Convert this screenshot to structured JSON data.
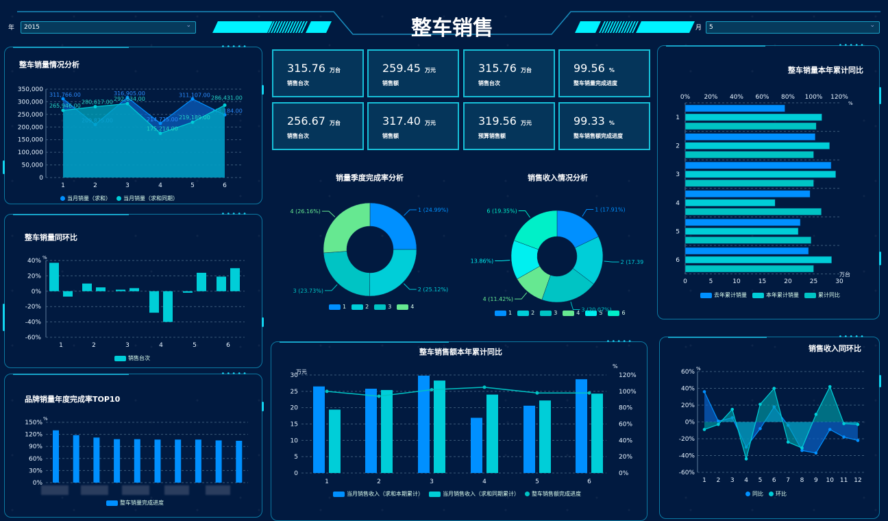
{
  "header": {
    "title": "整车销售",
    "year_label": "年",
    "year_value": "2015",
    "month_label": "月",
    "month_value": "5"
  },
  "colors": {
    "blue": "#0090ff",
    "cyan": "#00ced8",
    "teal": "#00c4c4",
    "green": "#66e891",
    "aqua": "#00f0f0",
    "mint": "#00f0c8",
    "border": "#17c0d8",
    "background": "#011a40"
  },
  "kpis": [
    {
      "value": "315.76",
      "unit": "万台",
      "label": "销售台次"
    },
    {
      "value": "259.45",
      "unit": "万元",
      "label": "销售额"
    },
    {
      "value": "315.76",
      "unit": "万台",
      "label": "销售台次"
    },
    {
      "value": "99.56",
      "unit": "%",
      "label": "整车销量完成进度"
    },
    {
      "value": "256.67",
      "unit": "万台",
      "label": "销售台次"
    },
    {
      "value": "317.40",
      "unit": "万元",
      "label": "销售额"
    },
    {
      "value": "319.56",
      "unit": "万元",
      "label": "预算销售额"
    },
    {
      "value": "99.33",
      "unit": "%",
      "label": "整车销售额完成进度"
    }
  ],
  "chart_data": [
    {
      "id": "sales_volume",
      "type": "area",
      "title": "整车销量情况分析",
      "categories": [
        "1",
        "2",
        "3",
        "4",
        "5",
        "6"
      ],
      "ylim": [
        0,
        350000
      ],
      "yticks": [
        "0",
        "50,000",
        "100,000",
        "150,000",
        "200,000",
        "250,000",
        "300,000",
        "350,000"
      ],
      "grid": true,
      "legend": "bottom",
      "series": [
        {
          "name": "当月销量（求和）",
          "values": [
            311766,
            209875,
            316905,
            214725,
            311107,
            248184
          ],
          "labels": [
            "311,766.00",
            "209,875.00",
            "316,905.00",
            "214,725.00",
            "311,107.00",
            "248,184.00"
          ]
        },
        {
          "name": "当月销量（求和同期）",
          "values": [
            265946,
            280617,
            292634,
            175214,
            219189,
            286431
          ],
          "labels": [
            "265,946.00",
            "280,617.00",
            "292,634.00",
            "175,214.00",
            "219,189.00",
            "286,431.00"
          ]
        }
      ]
    },
    {
      "id": "volume_yoy_mom",
      "type": "bar",
      "title": "整车销量同环比",
      "categories": [
        "1",
        "2",
        "3",
        "4",
        "5",
        "6"
      ],
      "ylim": [
        -60,
        40
      ],
      "yunit": "%",
      "yticks": [
        "-60%",
        "-40%",
        "-20%",
        "0%",
        "20%",
        "40%"
      ],
      "grid": true,
      "legend": "bottom",
      "series": [
        {
          "name": "销售台次",
          "values": [
            [
              37,
              -7
            ],
            [
              10,
              5
            ],
            [
              2,
              4
            ],
            [
              -28,
              -40
            ],
            [
              -2,
              24
            ],
            [
              19,
              30
            ]
          ]
        }
      ]
    },
    {
      "id": "brand_top10",
      "type": "bar",
      "title": "品牌销量年度完成率TOP10",
      "ylim": [
        0,
        150
      ],
      "yunit": "%",
      "yticks": [
        "0%",
        "30%",
        "60%",
        "90%",
        "120%",
        "150%"
      ],
      "grid": true,
      "legend": "bottom",
      "series": [
        {
          "name": "整车销量完成进度",
          "values": [
            130,
            118,
            112,
            108,
            108,
            107,
            107,
            107,
            105,
            104
          ]
        }
      ]
    },
    {
      "id": "quarter_rate",
      "type": "pie",
      "title": "销量季度完成率分析",
      "legend": "bottom",
      "slices": [
        {
          "name": "1",
          "value": 24.99,
          "label": "1 (24.99%)"
        },
        {
          "name": "2",
          "value": 25.12,
          "label": "2 (25.12%)"
        },
        {
          "name": "3",
          "value": 23.73,
          "label": "3 (23.73%)"
        },
        {
          "name": "4",
          "value": 26.16,
          "label": "4 (26.16%)"
        }
      ]
    },
    {
      "id": "revenue_share",
      "type": "pie",
      "title": "销售收入情况分析",
      "legend": "bottom",
      "slices": [
        {
          "name": "1",
          "value": 17.91,
          "label": "1 (17.91%)"
        },
        {
          "name": "2",
          "value": 17.39,
          "label": "2 (17.39"
        },
        {
          "name": "3",
          "value": 20.07,
          "label": "3 (20.07%)"
        },
        {
          "name": "4",
          "value": 11.42,
          "label": "4 (11.42%)"
        },
        {
          "name": "5",
          "value": 13.86,
          "label": "13.86%)"
        },
        {
          "name": "6",
          "value": 19.35,
          "label": "6 (19.35%)"
        }
      ]
    },
    {
      "id": "volume_ytd",
      "type": "bar",
      "orientation": "horizontal",
      "title": "整车销量本年累计同比",
      "categories": [
        "1",
        "2",
        "3",
        "4",
        "5",
        "6"
      ],
      "xlim": [
        0,
        30
      ],
      "xunit": "万台",
      "xticks": [
        "0",
        "5",
        "10",
        "15",
        "20",
        "25",
        "30"
      ],
      "x2lim": [
        0,
        120
      ],
      "x2unit": "%",
      "x2ticks": [
        "0%",
        "20%",
        "40%",
        "60%",
        "80%",
        "100%",
        "120%"
      ],
      "legend": "bottom",
      "series": [
        {
          "name": "去年累计销量",
          "axis": "x",
          "values": [
            19.4,
            25.3,
            28.4,
            24.3,
            22.4,
            24.0
          ]
        },
        {
          "name": "本年累计销量",
          "axis": "x",
          "values": [
            26.6,
            28.1,
            29.3,
            17.5,
            22.0,
            28.5
          ]
        },
        {
          "name": "累计同比",
          "axis": "x2",
          "values": [
            102,
            100,
            100,
            106,
            98,
            100
          ]
        }
      ]
    },
    {
      "id": "revenue_ytd",
      "type": "bar",
      "title": "整车销售额本年累计同比",
      "categories": [
        "1",
        "2",
        "3",
        "4",
        "5",
        "6"
      ],
      "ylim": [
        0,
        30
      ],
      "yunit": "万元",
      "yticks": [
        "0",
        "5",
        "10",
        "15",
        "20",
        "25",
        "30"
      ],
      "y2lim": [
        0,
        120
      ],
      "y2unit": "%",
      "y2ticks": [
        "0%",
        "20%",
        "40%",
        "60%",
        "80%",
        "100%",
        "120%"
      ],
      "grid": true,
      "legend": "bottom",
      "series": [
        {
          "name": "当月销售收入（求和本期累计）",
          "type": "bar",
          "values": [
            26.5,
            25.8,
            29.8,
            16.9,
            20.6,
            28.7
          ]
        },
        {
          "name": "当月销售收入（求和同期累计）",
          "type": "bar",
          "values": [
            19.4,
            25.4,
            28.3,
            24.0,
            22.2,
            24.3
          ]
        },
        {
          "name": "整车销售额完成进度",
          "type": "line",
          "axis": "y2",
          "values": [
            100,
            94,
            102,
            105,
            98,
            98
          ]
        }
      ]
    },
    {
      "id": "revenue_yoy_mom",
      "type": "area",
      "title": "销售收入同环比",
      "categories": [
        "1",
        "2",
        "3",
        "4",
        "5",
        "6",
        "7",
        "8",
        "9",
        "10",
        "11",
        "12"
      ],
      "ylim": [
        -60,
        60
      ],
      "yunit": "%",
      "yticks": [
        "-60%",
        "-40%",
        "-20%",
        "0%",
        "20%",
        "40%",
        "60%"
      ],
      "grid": true,
      "legend": "bottom",
      "series": [
        {
          "name": "同比",
          "values": [
            36,
            1,
            5,
            -30,
            -8,
            18,
            -4,
            -34,
            -37,
            -9,
            -18,
            -22
          ]
        },
        {
          "name": "环比",
          "values": [
            -9,
            -3,
            15,
            -44,
            21,
            40,
            -24,
            -31,
            9,
            42,
            -2,
            -3
          ]
        }
      ]
    }
  ]
}
